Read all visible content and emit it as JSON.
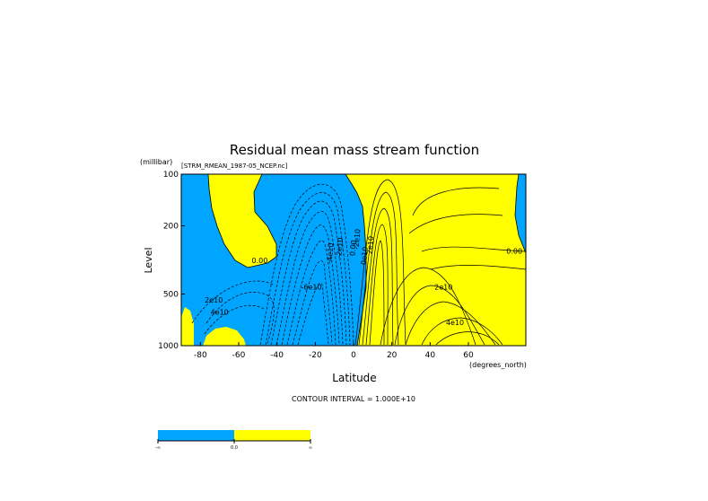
{
  "chart_data": {
    "type": "contour",
    "title": "Residual mean mass stream function",
    "dataset_label": "[STRM_RMEAN_1987-05_NCEP.nc]",
    "xlabel": "Latitude",
    "x_units": "(degrees_north)",
    "ylabel": "Level",
    "y_units": "(millibar)",
    "xlim": [
      -90,
      90
    ],
    "ylim": [
      1000,
      100
    ],
    "y_scale": "log",
    "x_ticks": [
      -80,
      -60,
      -40,
      -20,
      0,
      20,
      40,
      60
    ],
    "y_ticks": [
      100,
      200,
      500,
      1000
    ],
    "x_tick_labels": [
      "-80",
      "-60",
      "-40",
      "-20",
      "0",
      "20",
      "40",
      "60"
    ],
    "y_tick_labels": [
      "100",
      "200",
      "500",
      "1000"
    ],
    "contour_interval_text": "CONTOUR INTERVAL = 1.000E+10",
    "contour_labels": [
      {
        "text": "0.00",
        "lat": -49,
        "p": 330
      },
      {
        "text": "2e10",
        "lat": -73,
        "p": 560
      },
      {
        "text": "4e10",
        "lat": -70,
        "p": 660
      },
      {
        "text": "-6e10",
        "lat": -22,
        "p": 470
      },
      {
        "text": "-4e10",
        "lat": -11,
        "p": 290
      },
      {
        "text": "-2e10",
        "lat": -6,
        "p": 270
      },
      {
        "text": "0.00",
        "lat": 1,
        "p": 270
      },
      {
        "text": "-2e10",
        "lat": 3,
        "p": 240
      },
      {
        "text": "0e10",
        "lat": 7,
        "p": 300
      },
      {
        "text": "2e10",
        "lat": 10,
        "p": 260
      },
      {
        "text": "2e10",
        "lat": 47,
        "p": 470
      },
      {
        "text": "4e10",
        "lat": 53,
        "p": 760
      },
      {
        "text": "0.00",
        "lat": 84,
        "p": 290
      }
    ],
    "colors": {
      "negative": "#00a5ff",
      "positive": "#ffff00"
    },
    "colorbar": {
      "boundaries": [
        "-∞",
        "0.0",
        "∞"
      ],
      "colors": [
        "#00a5ff",
        "#ffff00"
      ]
    }
  }
}
